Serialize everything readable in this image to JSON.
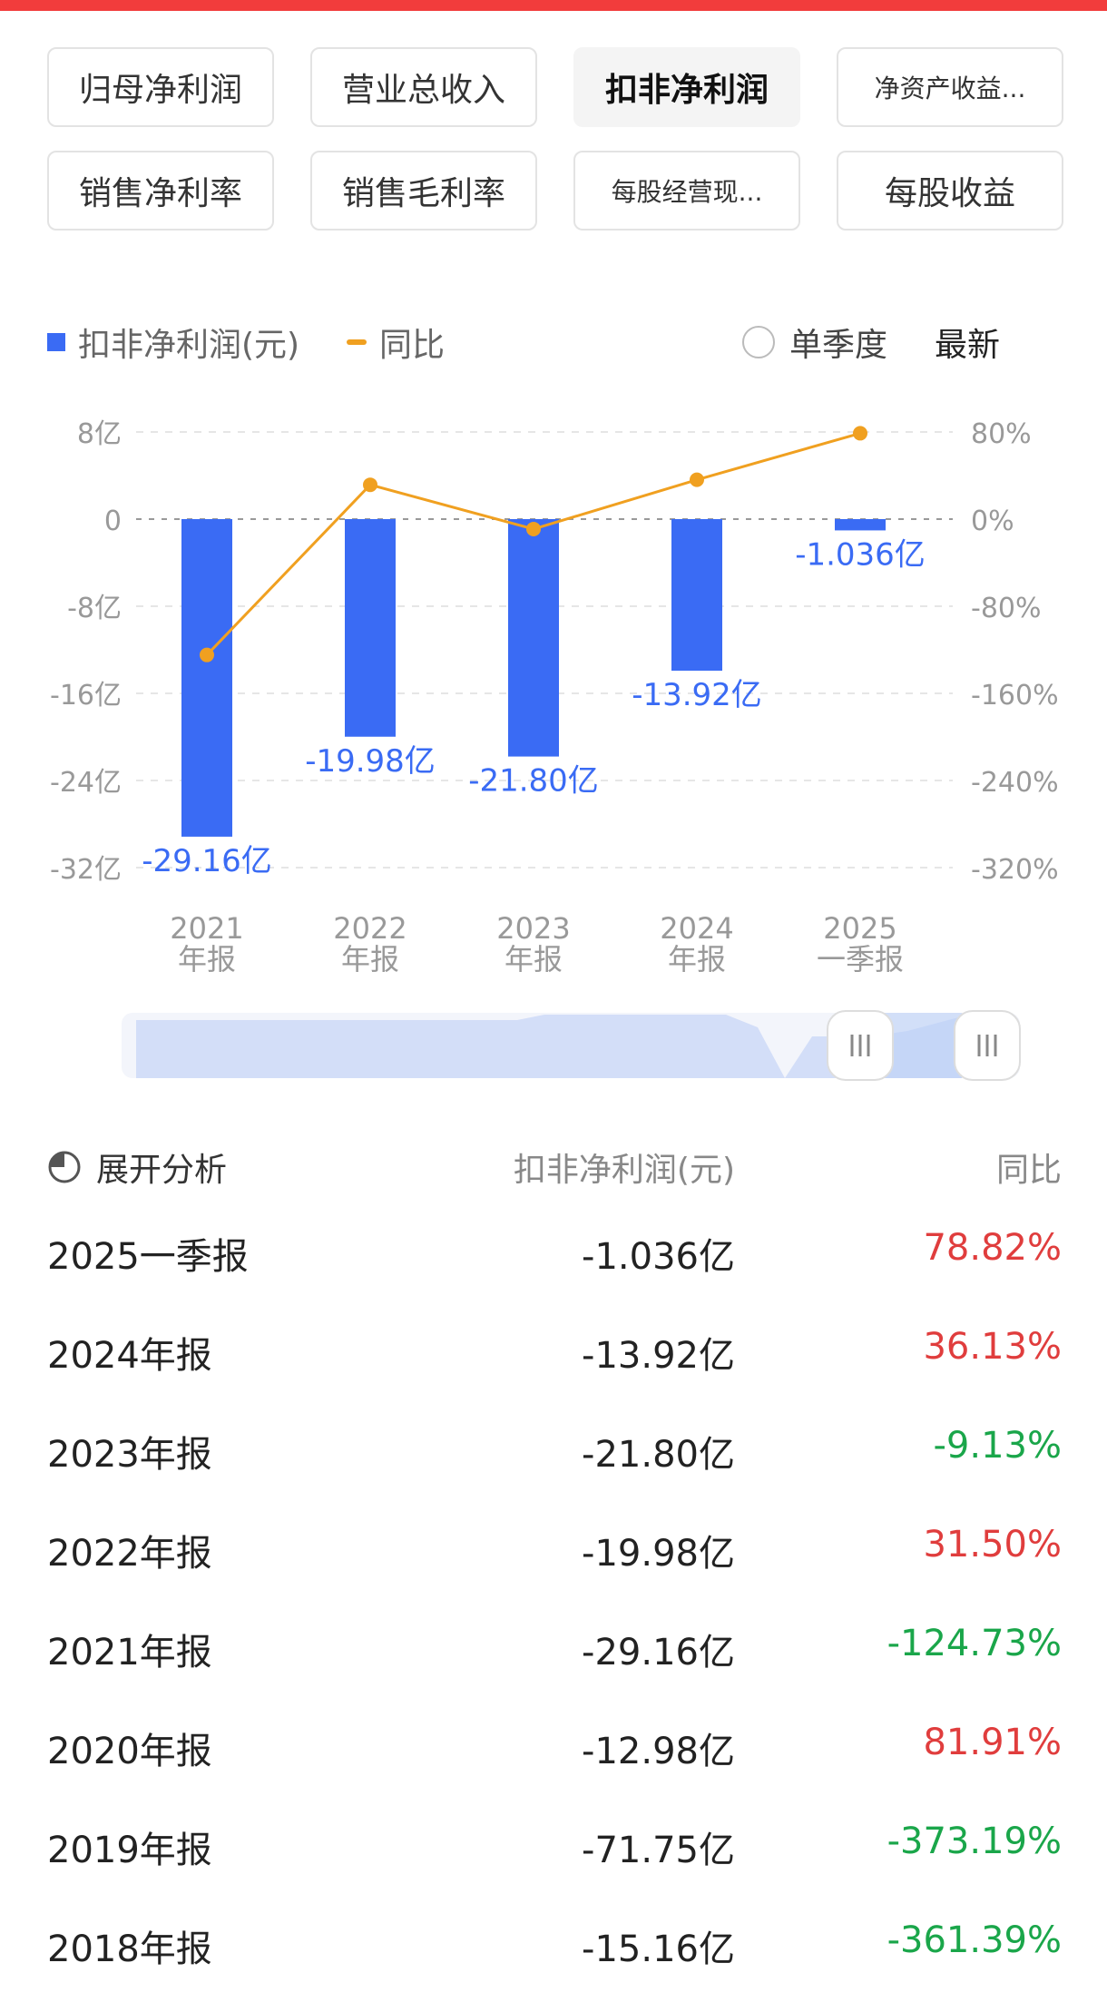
{
  "tabs": [
    {
      "label": "归母净利润",
      "active": false,
      "small": false
    },
    {
      "label": "营业总收入",
      "active": false,
      "small": false
    },
    {
      "label": "扣非净利润",
      "active": true,
      "small": false
    },
    {
      "label": "净资产收益...",
      "active": false,
      "small": true
    },
    {
      "label": "销售净利率",
      "active": false,
      "small": false
    },
    {
      "label": "销售毛利率",
      "active": false,
      "small": false
    },
    {
      "label": "每股经营现...",
      "active": false,
      "small": true
    },
    {
      "label": "每股收益",
      "active": false,
      "small": false
    }
  ],
  "legend": {
    "bar_label": "扣非净利润(元)",
    "line_label": "同比",
    "quarter_label": "单季度",
    "latest_label": "最新"
  },
  "colors": {
    "bar": "#3a6bf4",
    "line": "#f0a020",
    "up": "#e03d3d",
    "down": "#1aa64a"
  },
  "chart_data": {
    "type": "bar",
    "categories": [
      "2021\n年报",
      "2022\n年报",
      "2023\n年报",
      "2024\n年报",
      "2025\n一季报"
    ],
    "series": [
      {
        "name": "扣非净利润(元)",
        "values": [
          -29.16,
          -19.98,
          -21.8,
          -13.92,
          -1.036
        ],
        "labels": [
          "-29.16亿",
          "-19.98亿",
          "-21.80亿",
          "-13.92亿",
          "-1.036亿"
        ]
      },
      {
        "name": "同比",
        "type": "line",
        "axis": "right",
        "values": [
          -124.73,
          31.5,
          -9.13,
          36.13,
          78.82
        ]
      }
    ],
    "y_left": {
      "ticks": [
        8,
        0,
        -8,
        -16,
        -24,
        -32
      ],
      "tick_labels": [
        "8亿",
        "0",
        "-8亿",
        "-16亿",
        "-24亿",
        "-32亿"
      ],
      "range": [
        -32,
        8
      ]
    },
    "y_right": {
      "ticks": [
        80,
        0,
        -80,
        -160,
        -240,
        -320
      ],
      "tick_labels": [
        "80%",
        "0%",
        "-80%",
        "-160%",
        "-240%",
        "-320%"
      ],
      "range": [
        -320,
        80
      ]
    },
    "grid": true
  },
  "table": {
    "header": {
      "col1": "展开分析",
      "col2": "扣非净利润(元)",
      "col3": "同比"
    },
    "rows": [
      {
        "period": "2025一季报",
        "value": "-1.036亿",
        "yoy": "78.82%",
        "dir": "up"
      },
      {
        "period": "2024年报",
        "value": "-13.92亿",
        "yoy": "36.13%",
        "dir": "up"
      },
      {
        "period": "2023年报",
        "value": "-21.80亿",
        "yoy": "-9.13%",
        "dir": "down"
      },
      {
        "period": "2022年报",
        "value": "-19.98亿",
        "yoy": "31.50%",
        "dir": "up"
      },
      {
        "period": "2021年报",
        "value": "-29.16亿",
        "yoy": "-124.73%",
        "dir": "down"
      },
      {
        "period": "2020年报",
        "value": "-12.98亿",
        "yoy": "81.91%",
        "dir": "up"
      },
      {
        "period": "2019年报",
        "value": "-71.75亿",
        "yoy": "-373.19%",
        "dir": "down"
      },
      {
        "period": "2018年报",
        "value": "-15.16亿",
        "yoy": "-361.39%",
        "dir": "down"
      }
    ]
  }
}
